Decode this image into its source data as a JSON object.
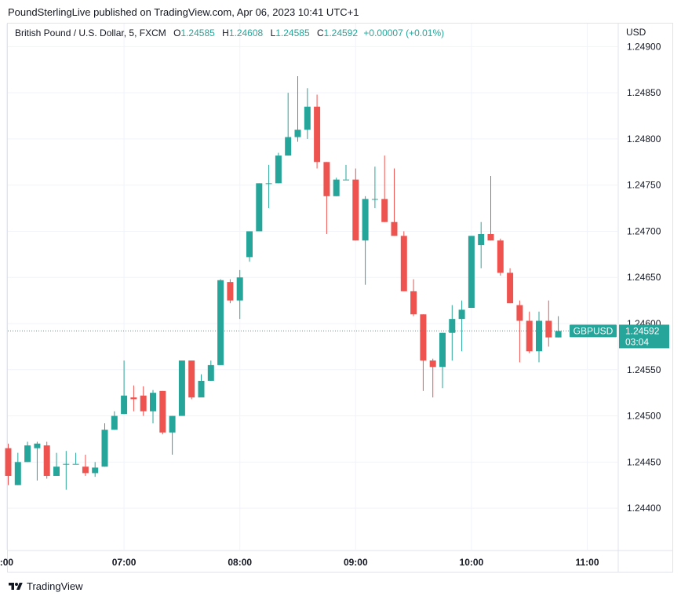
{
  "header": {
    "publisher_line": "PoundSterlingLive published on TradingView.com, Apr 06, 2023 10:41 UTC+1"
  },
  "legend": {
    "symbol": "British Pound / U.S. Dollar, 5, FXCM",
    "o_label": "O",
    "o_value": "1.24585",
    "h_label": "H",
    "h_value": "1.24608",
    "l_label": "L",
    "l_value": "1.24585",
    "c_label": "C",
    "c_value": "1.24592",
    "change": "+0.00007 (+0.01%)"
  },
  "footer": {
    "brand": "TradingView",
    "icon": "tradingview-logo-icon"
  },
  "colors": {
    "up": "#26a69a",
    "down": "#ef5350",
    "grid": "#f0f3fa",
    "text": "#131722"
  },
  "chart_data": {
    "type": "candlestick",
    "symbol": "GBPUSD",
    "currency": "USD",
    "interval": "5",
    "ylim": [
      1.24355,
      1.24925
    ],
    "yticks": [
      "1.24900",
      "1.24850",
      "1.24800",
      "1.24750",
      "1.24700",
      "1.24650",
      "1.24600",
      "1.24550",
      "1.24500",
      "1.24450",
      "1.24400"
    ],
    "xticks": [
      {
        "label": ":00",
        "index": -0.17
      },
      {
        "label": "07:00",
        "index": 12
      },
      {
        "label": "08:00",
        "index": 24
      },
      {
        "label": "09:00",
        "index": 36
      },
      {
        "label": "10:00",
        "index": 48
      },
      {
        "label": "11:00",
        "index": 60
      }
    ],
    "last_price": {
      "label": "GBPUSD",
      "value": "1.24592",
      "countdown": "03:04"
    },
    "grid": true,
    "candles": [
      {
        "o": 1.24465,
        "h": 1.2447,
        "l": 1.24425,
        "c": 1.24435
      },
      {
        "o": 1.24425,
        "h": 1.2446,
        "l": 1.24425,
        "c": 1.2445
      },
      {
        "o": 1.2445,
        "h": 1.24472,
        "l": 1.2445,
        "c": 1.24468
      },
      {
        "o": 1.24465,
        "h": 1.24472,
        "l": 1.2443,
        "c": 1.2447
      },
      {
        "o": 1.24468,
        "h": 1.24472,
        "l": 1.24432,
        "c": 1.24435
      },
      {
        "o": 1.24435,
        "h": 1.2446,
        "l": 1.24435,
        "c": 1.24445
      },
      {
        "o": 1.24448,
        "h": 1.24462,
        "l": 1.2442,
        "c": 1.24448
      },
      {
        "o": 1.24448,
        "h": 1.2446,
        "l": 1.24448,
        "c": 1.24448
      },
      {
        "o": 1.24445,
        "h": 1.24458,
        "l": 1.24435,
        "c": 1.24438
      },
      {
        "o": 1.24438,
        "h": 1.2445,
        "l": 1.24434,
        "c": 1.24444
      },
      {
        "o": 1.24445,
        "h": 1.24492,
        "l": 1.24445,
        "c": 1.24485
      },
      {
        "o": 1.24485,
        "h": 1.24505,
        "l": 1.24485,
        "c": 1.245
      },
      {
        "o": 1.24502,
        "h": 1.2456,
        "l": 1.24502,
        "c": 1.24522
      },
      {
        "o": 1.2452,
        "h": 1.24533,
        "l": 1.24505,
        "c": 1.24518
      },
      {
        "o": 1.24522,
        "h": 1.24532,
        "l": 1.245,
        "c": 1.24505
      },
      {
        "o": 1.24505,
        "h": 1.24528,
        "l": 1.24492,
        "c": 1.24525
      },
      {
        "o": 1.24527,
        "h": 1.24527,
        "l": 1.2448,
        "c": 1.24482
      },
      {
        "o": 1.24482,
        "h": 1.245,
        "l": 1.24458,
        "c": 1.245
      },
      {
        "o": 1.245,
        "h": 1.2456,
        "l": 1.245,
        "c": 1.2456
      },
      {
        "o": 1.2456,
        "h": 1.2456,
        "l": 1.24518,
        "c": 1.2452
      },
      {
        "o": 1.2452,
        "h": 1.24545,
        "l": 1.2452,
        "c": 1.24538
      },
      {
        "o": 1.24538,
        "h": 1.2456,
        "l": 1.24538,
        "c": 1.24555
      },
      {
        "o": 1.24555,
        "h": 1.24648,
        "l": 1.24555,
        "c": 1.24647
      },
      {
        "o": 1.24645,
        "h": 1.24648,
        "l": 1.24622,
        "c": 1.24625
      },
      {
        "o": 1.24625,
        "h": 1.24658,
        "l": 1.24605,
        "c": 1.2465
      },
      {
        "o": 1.24672,
        "h": 1.247,
        "l": 1.24667,
        "c": 1.247
      },
      {
        "o": 1.247,
        "h": 1.24752,
        "l": 1.247,
        "c": 1.24752
      },
      {
        "o": 1.24752,
        "h": 1.24772,
        "l": 1.24725,
        "c": 1.24752
      },
      {
        "o": 1.24752,
        "h": 1.24785,
        "l": 1.24752,
        "c": 1.24782
      },
      {
        "o": 1.24782,
        "h": 1.2485,
        "l": 1.24782,
        "c": 1.24802
      },
      {
        "o": 1.24802,
        "h": 1.24868,
        "l": 1.24797,
        "c": 1.2481
      },
      {
        "o": 1.2481,
        "h": 1.24855,
        "l": 1.248,
        "c": 1.24835
      },
      {
        "o": 1.24835,
        "h": 1.24848,
        "l": 1.24768,
        "c": 1.24775
      },
      {
        "o": 1.24775,
        "h": 1.24775,
        "l": 1.24697,
        "c": 1.24738
      },
      {
        "o": 1.24738,
        "h": 1.24758,
        "l": 1.24738,
        "c": 1.24756
      },
      {
        "o": 1.24756,
        "h": 1.24772,
        "l": 1.24756,
        "c": 1.24756
      },
      {
        "o": 1.24756,
        "h": 1.24768,
        "l": 1.2469,
        "c": 1.2469
      },
      {
        "o": 1.2469,
        "h": 1.24738,
        "l": 1.24642,
        "c": 1.24735
      },
      {
        "o": 1.24735,
        "h": 1.2477,
        "l": 1.24725,
        "c": 1.24735
      },
      {
        "o": 1.24735,
        "h": 1.24782,
        "l": 1.2471,
        "c": 1.2471
      },
      {
        "o": 1.2471,
        "h": 1.24768,
        "l": 1.24695,
        "c": 1.24695
      },
      {
        "o": 1.24695,
        "h": 1.247,
        "l": 1.24635,
        "c": 1.24635
      },
      {
        "o": 1.24635,
        "h": 1.24648,
        "l": 1.24608,
        "c": 1.2461
      },
      {
        "o": 1.2461,
        "h": 1.2461,
        "l": 1.24527,
        "c": 1.2456
      },
      {
        "o": 1.2456,
        "h": 1.24562,
        "l": 1.2452,
        "c": 1.24553
      },
      {
        "o": 1.24553,
        "h": 1.2459,
        "l": 1.2453,
        "c": 1.2459
      },
      {
        "o": 1.2459,
        "h": 1.2462,
        "l": 1.2456,
        "c": 1.24605
      },
      {
        "o": 1.24605,
        "h": 1.24625,
        "l": 1.2457,
        "c": 1.24615
      },
      {
        "o": 1.24617,
        "h": 1.24695,
        "l": 1.24617,
        "c": 1.24695
      },
      {
        "o": 1.24685,
        "h": 1.2471,
        "l": 1.2466,
        "c": 1.24697
      },
      {
        "o": 1.24697,
        "h": 1.2476,
        "l": 1.2469,
        "c": 1.2469
      },
      {
        "o": 1.2469,
        "h": 1.24692,
        "l": 1.24652,
        "c": 1.24655
      },
      {
        "o": 1.24655,
        "h": 1.2466,
        "l": 1.24622,
        "c": 1.24622
      },
      {
        "o": 1.2462,
        "h": 1.24625,
        "l": 1.24558,
        "c": 1.24603
      },
      {
        "o": 1.24603,
        "h": 1.24613,
        "l": 1.24568,
        "c": 1.2457
      },
      {
        "o": 1.2457,
        "h": 1.24613,
        "l": 1.24558,
        "c": 1.24603
      },
      {
        "o": 1.24603,
        "h": 1.24625,
        "l": 1.24575,
        "c": 1.24585
      },
      {
        "o": 1.24585,
        "h": 1.24608,
        "l": 1.24585,
        "c": 1.24592
      }
    ]
  }
}
